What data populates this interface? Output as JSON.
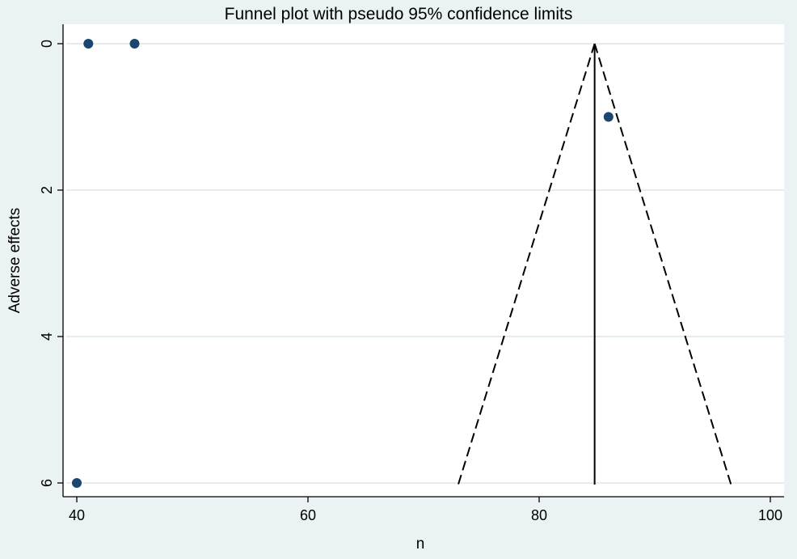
{
  "chart_data": {
    "type": "scatter",
    "title": "Funnel plot with pseudo 95% confidence limits",
    "xlabel": "n",
    "ylabel": "Adverse effects",
    "xlim": [
      39,
      101
    ],
    "ylim": [
      6,
      0
    ],
    "y_reversed": true,
    "xticks": [
      "40",
      "60",
      "80",
      "100"
    ],
    "yticks": [
      "0",
      "2",
      "4",
      "6"
    ],
    "grid": "horizontal",
    "points": [
      {
        "x": 41,
        "y": 0
      },
      {
        "x": 45,
        "y": 0
      },
      {
        "x": 86,
        "y": 1
      },
      {
        "x": 40,
        "y": 6
      }
    ],
    "pooled_estimate": 84.8,
    "confidence_limits": {
      "apex": [
        84.8,
        0
      ],
      "lower_at_6": 73.0,
      "upper_at_6": 96.6
    },
    "colors": {
      "points": "#1a4670",
      "background": "#eaf2f3",
      "plot": "#ffffff",
      "grid": "#e4ecee"
    }
  }
}
